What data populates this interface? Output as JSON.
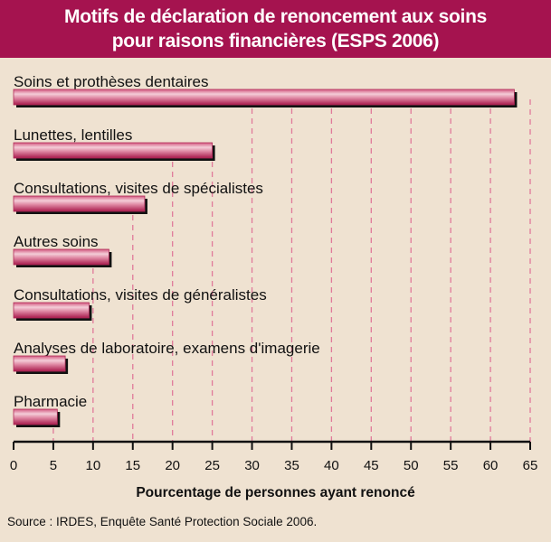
{
  "title": {
    "line1": "Motifs de déclaration de renoncement aux soins",
    "line2": "pour raisons financières (ESPS 2006)"
  },
  "source": "Source : IRDES, Enquête Santé Protection Sociale 2006.",
  "colors": {
    "title_bg": "#a5134f",
    "background": "#efe2d1",
    "bar": "#c0305e",
    "bar_light": "#f2c6d2",
    "grid": "#e07a9a"
  },
  "chart_data": {
    "type": "bar",
    "orientation": "horizontal",
    "title": "Motifs de déclaration de renoncement aux soins pour raisons financières (ESPS 2006)",
    "categories": [
      "Soins et prothèses dentaires",
      "Lunettes, lentilles",
      "Consultations, visites de spécialistes",
      "Autres soins",
      "Consultations, visites de généralistes",
      "Analyses de laboratoire, examens d'imagerie",
      "Pharmacie"
    ],
    "values": [
      63,
      25,
      16.5,
      12,
      9.5,
      6.5,
      5.5
    ],
    "xlabel": "Pourcentage de personnes ayant renoncé",
    "ylabel": "",
    "xlim": [
      0,
      65
    ],
    "xticks": [
      "0",
      "5",
      "10",
      "15",
      "20",
      "25",
      "30",
      "35",
      "40",
      "45",
      "50",
      "55",
      "60",
      "65"
    ],
    "grid": "vertical dashed"
  }
}
